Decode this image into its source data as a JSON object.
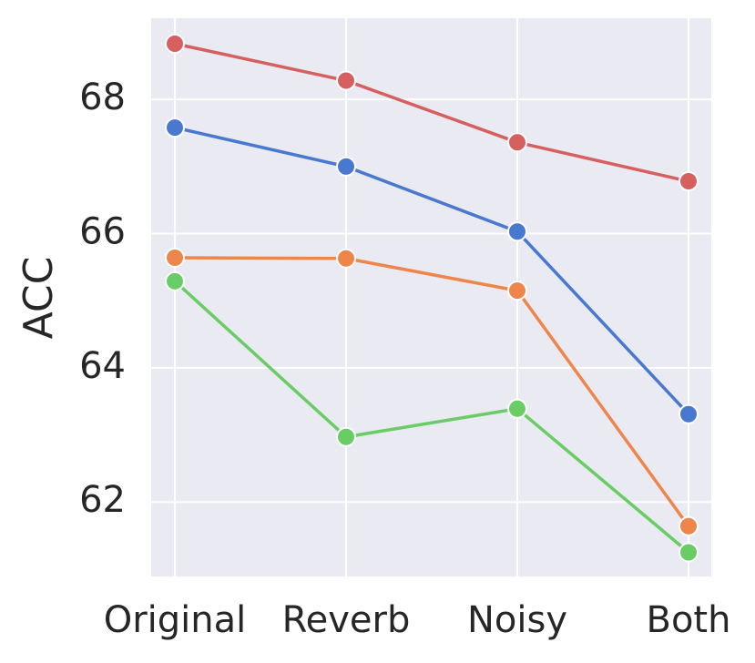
{
  "chart_data": {
    "type": "line",
    "ylabel": "ACC",
    "categories": [
      "Original",
      "Reverb",
      "Noisy",
      "Both"
    ],
    "series": [
      {
        "color": "#d65f5f",
        "values": [
          68.83,
          68.28,
          67.36,
          66.78
        ]
      },
      {
        "color": "#4878d0",
        "values": [
          67.58,
          67.0,
          66.03,
          63.31
        ]
      },
      {
        "color": "#ee854a",
        "values": [
          65.64,
          65.63,
          65.15,
          61.64
        ]
      },
      {
        "color": "#6acc64",
        "values": [
          65.29,
          62.97,
          63.39,
          61.25
        ]
      }
    ],
    "ylim": [
      60.89,
      69.21
    ],
    "yticks": [
      62,
      64,
      66,
      68
    ],
    "grid": true
  }
}
